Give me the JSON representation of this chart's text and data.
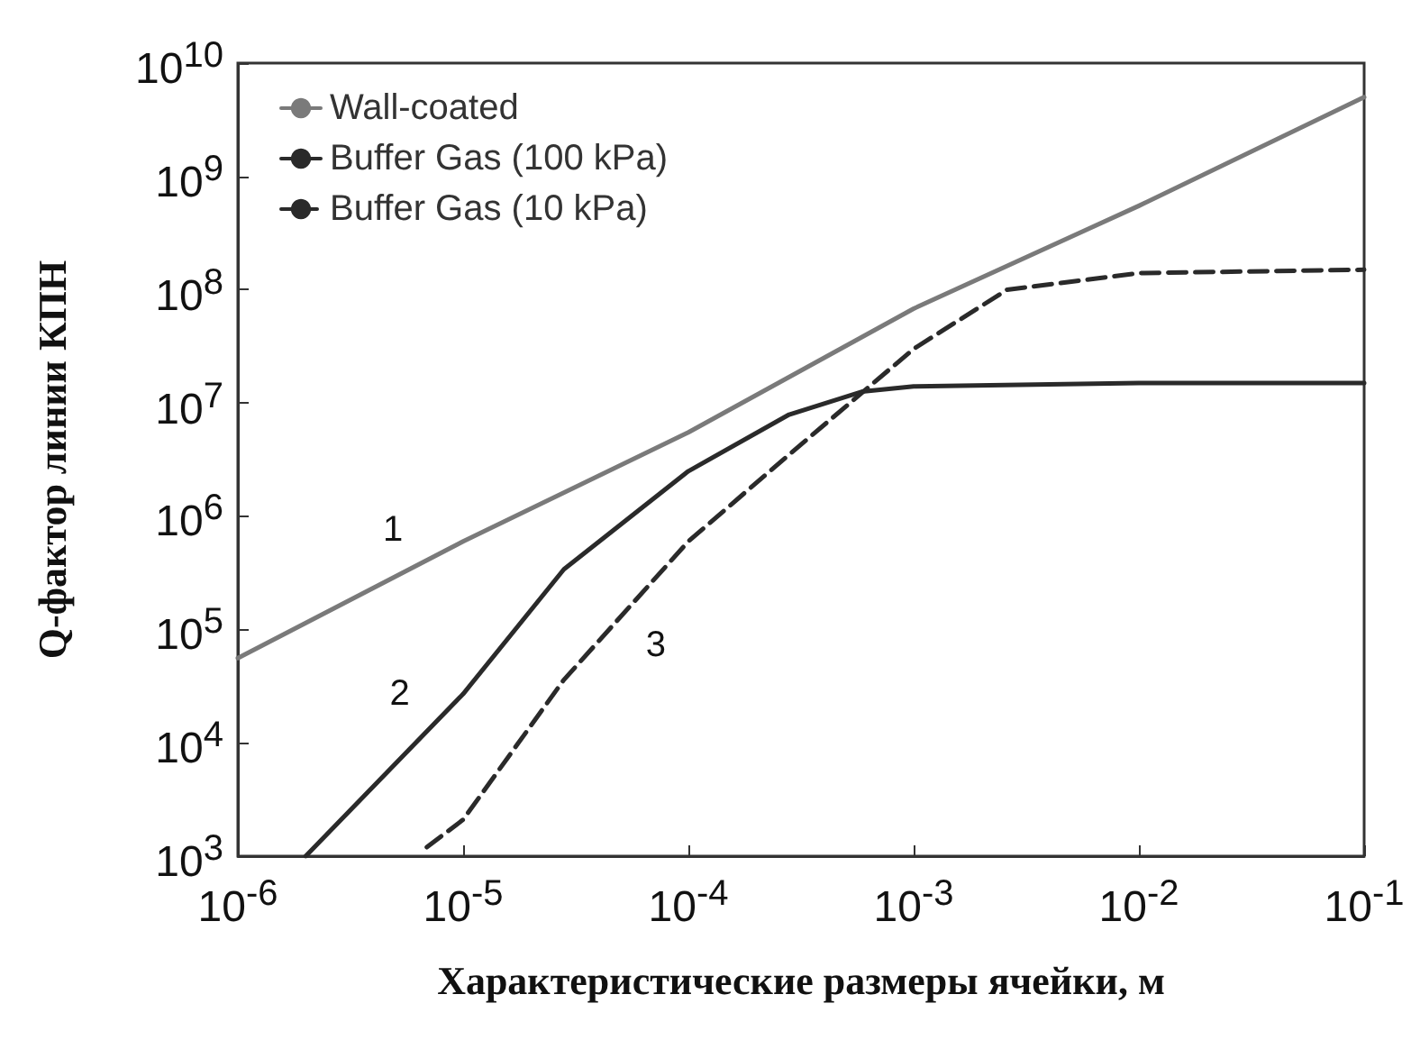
{
  "chart_data": {
    "type": "line",
    "xlabel": "Характеристические размеры ячейки, м",
    "ylabel": "Q-фактор линии КПН",
    "log": "xy",
    "xlim": [
      1e-06,
      0.1
    ],
    "ylim": [
      1000,
      10000000000.0
    ],
    "xticks": [
      {
        "value": 1e-06,
        "label": "10$^{-6}$"
      },
      {
        "value": 1e-05,
        "label": "10$^{-5}$"
      },
      {
        "value": 0.0001,
        "label": "10$^{-4}$"
      },
      {
        "value": 0.001,
        "label": "10$^{-3}$"
      },
      {
        "value": 0.01,
        "label": "10$^{-2}$"
      },
      {
        "value": 0.1,
        "label": "10$^{-1}$"
      }
    ],
    "yticks": [
      {
        "value": 1000,
        "label": "10$^{3}$"
      },
      {
        "value": 10000.0,
        "label": "10$^{4}$"
      },
      {
        "value": 100000.0,
        "label": "10$^{5}$"
      },
      {
        "value": 1000000.0,
        "label": "10$^{6}$"
      },
      {
        "value": 10000000.0,
        "label": "10$^{7}$"
      },
      {
        "value": 100000000.0,
        "label": "10$^{8}$"
      },
      {
        "value": 1000000000.0,
        "label": "10$^{9}$"
      },
      {
        "value": 10000000000.0,
        "label": "10$^{10}$"
      }
    ],
    "grid": false,
    "legend": "top left",
    "marker": "none",
    "series": [
      {
        "name": "Wall-coated",
        "color": "#7a7a7a",
        "line_style": "solid",
        "x": [
          1e-06,
          1e-05,
          0.0001,
          0.001,
          0.01,
          0.1
        ],
        "values": [
          56000,
          600000,
          5500000,
          68000000,
          550000000,
          5000000000
        ]
      },
      {
        "name": "Buffer Gas (100 kPa)",
        "color": "#2a2a2a",
        "line_style": "solid",
        "x": [
          2e-06,
          1e-05,
          2.8e-05,
          0.0001,
          0.00028,
          0.00059,
          0.001,
          0.01,
          0.1
        ],
        "values": [
          1000,
          27000,
          340000,
          2500000,
          7900000,
          12600000,
          14000000,
          15000000,
          15000000
        ]
      },
      {
        "name": "Buffer Gas (10 kPa)",
        "color": "#2a2a2a",
        "line_style": "dashed",
        "x": [
          6.9e-06,
          1e-05,
          2.8e-05,
          0.0001,
          0.00028,
          0.001,
          0.0026,
          0.01,
          0.1
        ],
        "values": [
          1200,
          2100,
          36000,
          600000,
          3500000,
          30000000,
          100000000,
          140000000,
          150000000
        ]
      }
    ],
    "annotations": [
      {
        "text": "1",
        "x": 7e-06,
        "y": 420000
      },
      {
        "text": "2",
        "x": 7.5e-06,
        "y": 15000
      },
      {
        "text": "3",
        "x": 5e-05,
        "y": 130000
      }
    ]
  }
}
